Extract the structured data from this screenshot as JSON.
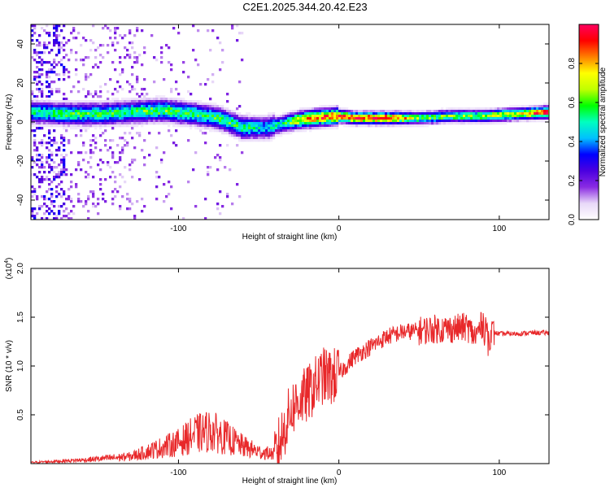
{
  "title": "C2E1.2025.344.20.42.E23",
  "chart_data": [
    {
      "type": "heatmap",
      "xlabel": "Height of straight line (km)",
      "ylabel": "Frequency (Hz)",
      "xlim": [
        -192,
        131
      ],
      "ylim": [
        -50,
        50
      ],
      "xticks": [
        -100,
        0,
        100
      ],
      "yticks": [
        -40,
        -20,
        0,
        20,
        40
      ],
      "colorbar": {
        "label": "Normalized spectral amplitude",
        "range": [
          0,
          1
        ],
        "ticks": [
          "0.0",
          "0.2",
          "0.4",
          "0.6",
          "0.8"
        ],
        "tick_values": [
          0,
          0.2,
          0.4,
          0.6,
          0.8
        ],
        "colors": [
          "#ffffff",
          "#e8d8f8",
          "#8a2be2",
          "#4b00e0",
          "#0000ff",
          "#00c0ff",
          "#00ffc0",
          "#00ff00",
          "#c0ff00",
          "#ffff00",
          "#ff8000",
          "#ff0000",
          "#ff0060"
        ]
      },
      "ridge": {
        "x": [
          -190,
          -170,
          -150,
          -130,
          -110,
          -90,
          -75,
          -60,
          -45,
          -35,
          -25,
          -15,
          0,
          10,
          30,
          50,
          70,
          90,
          110,
          131
        ],
        "y": [
          5,
          4,
          4,
          5,
          6,
          4,
          2,
          -3,
          -3,
          -1,
          1,
          2,
          3,
          2,
          2,
          2,
          3,
          3,
          4,
          5
        ],
        "peak_amplitude": [
          0.5,
          0.55,
          0.55,
          0.55,
          0.6,
          0.55,
          0.55,
          0.55,
          0.45,
          0.5,
          0.75,
          0.85,
          0.9,
          0.95,
          0.95,
          0.6,
          0.6,
          0.65,
          0.7,
          0.95
        ]
      }
    },
    {
      "type": "line",
      "xlabel": "Height of straight line (km)",
      "ylabel": "SNR (10 * v/v)",
      "y_multiplier": "(x10",
      "y_exponent": "4",
      "y_multiplier_close": ")",
      "xlim": [
        -192,
        131
      ],
      "ylim": [
        0,
        2.0
      ],
      "xticks": [
        -100,
        0,
        100
      ],
      "yticks": [
        0.5,
        1.0,
        1.5,
        2.0
      ],
      "ytick_labels": [
        "0.5",
        "1.0",
        "1.5",
        "2.0"
      ],
      "color": "#e8282a",
      "series": [
        {
          "name": "SNR",
          "x": [
            -192,
            -160,
            -130,
            -120,
            -100,
            -90,
            -80,
            -70,
            -60,
            -50,
            -40,
            -35,
            -30,
            -25,
            -20,
            -15,
            -10,
            -5,
            0,
            10,
            20,
            30,
            40,
            50,
            60,
            70,
            80,
            85,
            90,
            92,
            95,
            100,
            110,
            120,
            131
          ],
          "y": [
            0.01,
            0.03,
            0.06,
            0.1,
            0.18,
            0.25,
            0.28,
            0.22,
            0.15,
            0.1,
            0.08,
            0.3,
            0.55,
            0.65,
            0.7,
            0.8,
            0.9,
            0.88,
            0.92,
            1.1,
            1.2,
            1.3,
            1.35,
            1.36,
            1.38,
            1.38,
            1.4,
            1.3,
            1.45,
            1.2,
            1.35,
            1.33,
            1.33,
            1.34,
            1.34
          ]
        }
      ]
    }
  ]
}
